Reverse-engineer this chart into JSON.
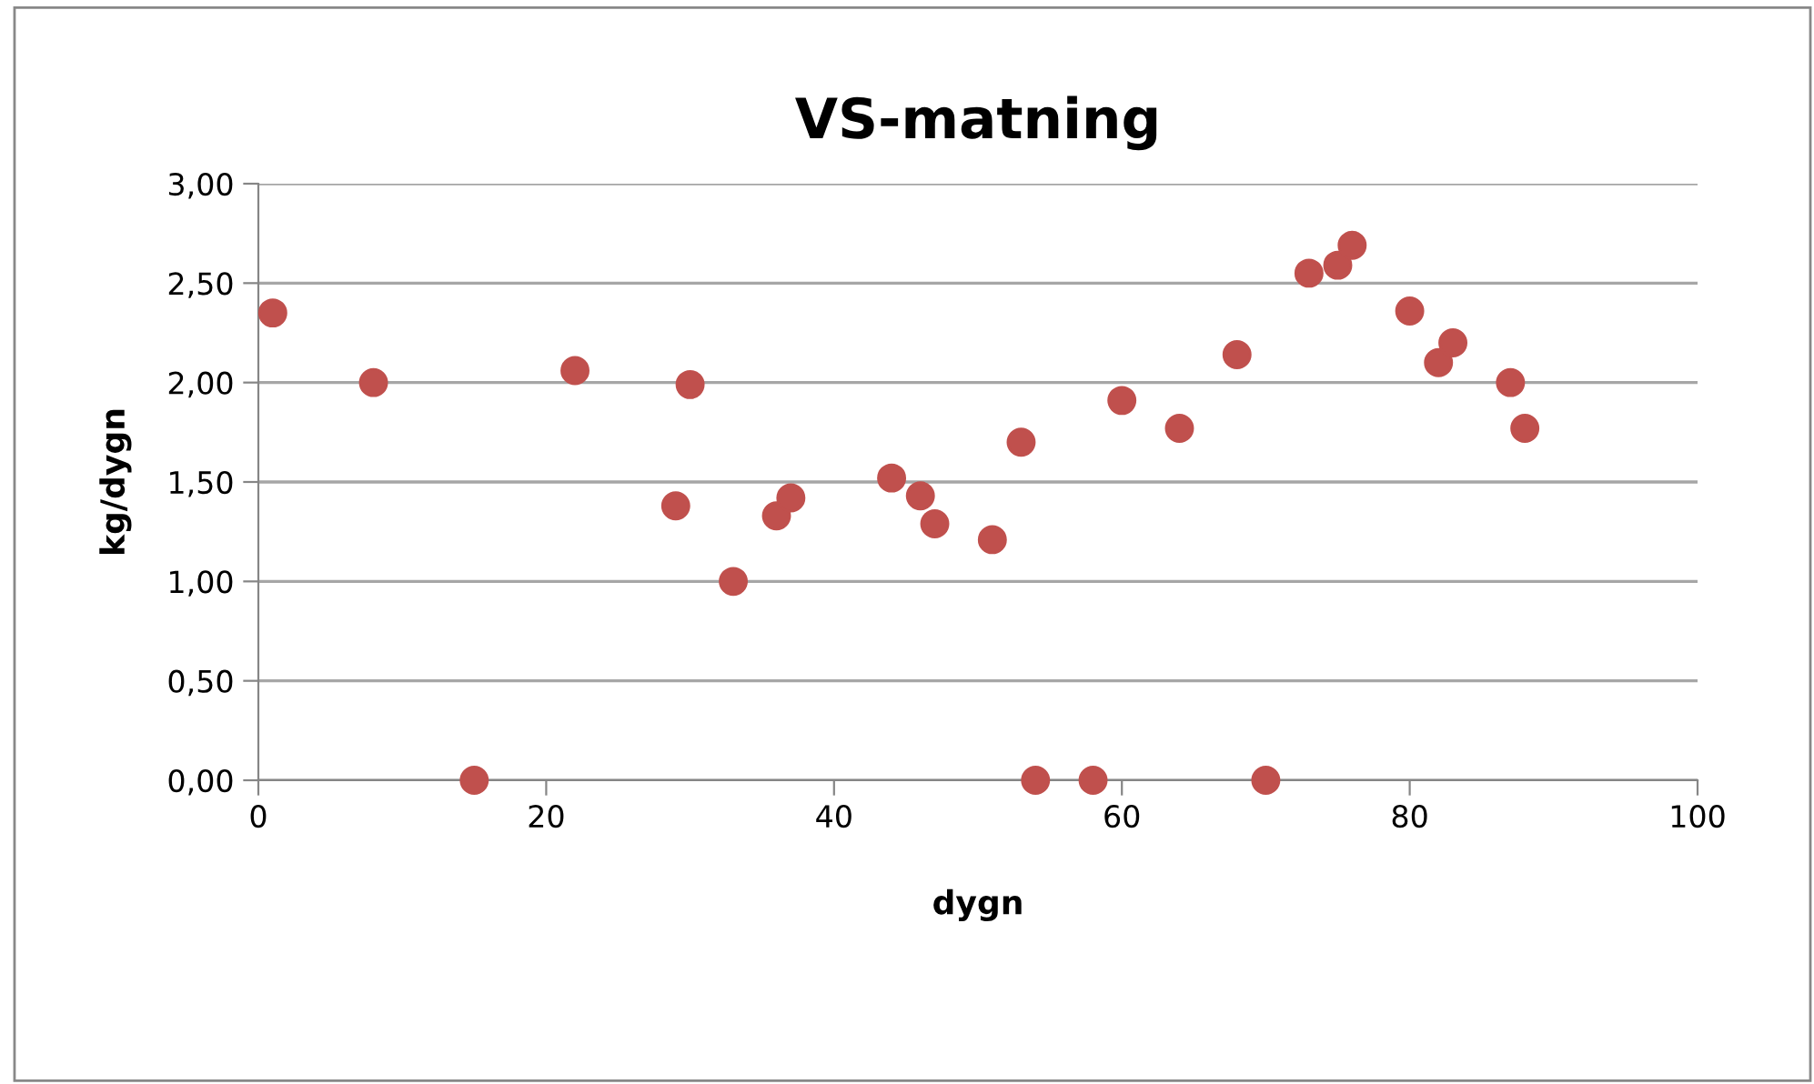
{
  "chart_data": {
    "type": "scatter",
    "title": "VS-matning",
    "xlabel": "dygn",
    "ylabel": "kg/dygn",
    "x": [
      1,
      8,
      15,
      22,
      29,
      30,
      33,
      36,
      37,
      44,
      46,
      47,
      51,
      53,
      54,
      58,
      60,
      64,
      68,
      70,
      73,
      75,
      76,
      80,
      82,
      83,
      87,
      88
    ],
    "series": [
      {
        "color": "#c0504d",
        "values": [
          2.35,
          2.0,
          0,
          2.06,
          1.38,
          1.99,
          1.0,
          1.33,
          1.42,
          1.52,
          1.43,
          1.29,
          1.21,
          1.7,
          0,
          0,
          1.91,
          1.77,
          2.14,
          0,
          2.55,
          2.59,
          2.69,
          2.36,
          2.1,
          2.2,
          2.0,
          1.77
        ]
      }
    ],
    "xlim": [
      0,
      100
    ],
    "xticks": [
      0,
      20,
      40,
      60,
      80,
      100
    ],
    "ylim": [
      0,
      3
    ],
    "yticks": [
      {
        "value": 0,
        "label": "0,00"
      },
      {
        "value": 0.5,
        "label": "0,50"
      },
      {
        "value": 1,
        "label": "1,00"
      },
      {
        "value": 1.5,
        "label": "1,50"
      },
      {
        "value": 2,
        "label": "2,00"
      },
      {
        "value": 2.5,
        "label": "2,50"
      },
      {
        "value": 3,
        "label": "3,00"
      }
    ],
    "grid": "y",
    "marker": "circle"
  }
}
